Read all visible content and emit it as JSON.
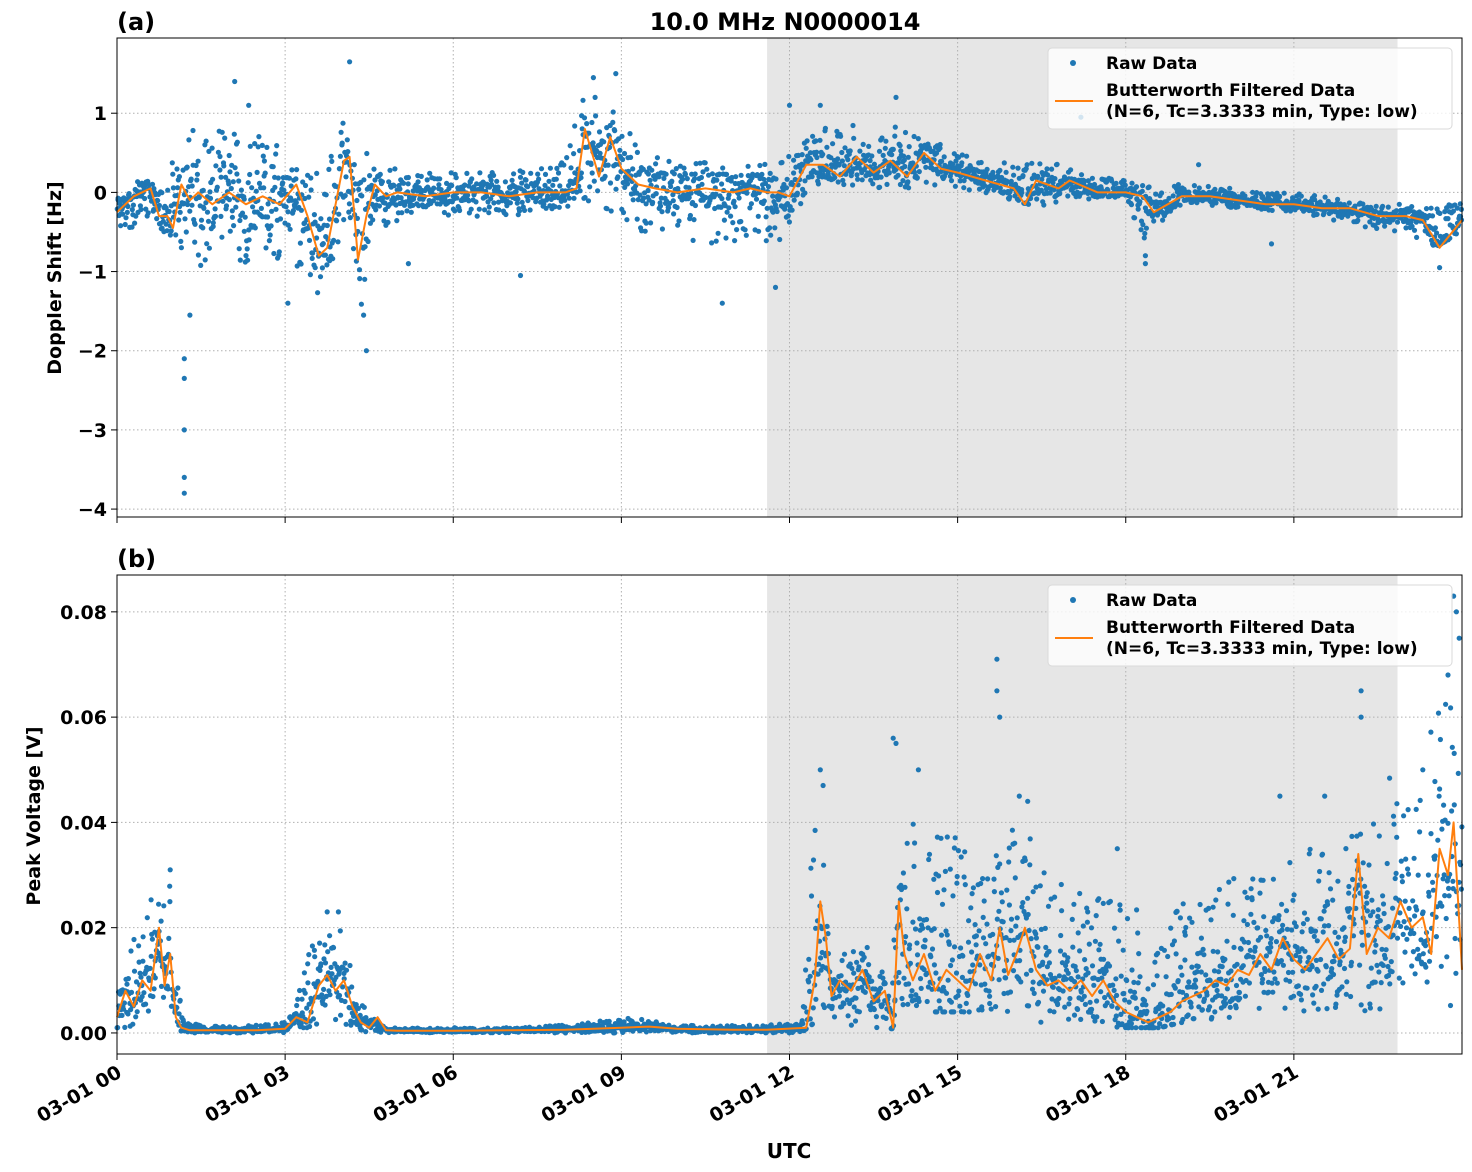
{
  "figure_title": "10.0 MHz N0000014",
  "x_axis_label": "UTC",
  "x_tick_labels": [
    "03-01 00",
    "03-01 03",
    "03-01 06",
    "03-01 09",
    "03-01 12",
    "03-01 15",
    "03-01 18",
    "03-01 21"
  ],
  "legend": {
    "raw_label": "Raw Data",
    "filtered_label_line1": "Butterworth Filtered Data",
    "filtered_label_line2": "(N=6, Tc=3.3333 min, Type: low)",
    "placement": "top-right"
  },
  "colors": {
    "raw": "#1f77b4",
    "filtered": "#ff7f0e",
    "night_shade": "#e6e6e6"
  },
  "chart_data": [
    {
      "type": "scatter",
      "panel_label": "(a)",
      "title": "10.0 MHz N0000014",
      "xlabel": "",
      "ylabel": "Doppler Shift [Hz]",
      "xlim_hours": [
        0,
        24
      ],
      "ylim": [
        -4.1,
        1.95
      ],
      "y_ticks": [
        -4,
        -3,
        -2,
        -1,
        0,
        1
      ],
      "y_tick_labels": [
        "−4",
        "−3",
        "−2",
        "−1",
        "0",
        "1"
      ],
      "grid": true,
      "shaded_region_hours": [
        11.6,
        22.85
      ],
      "series": [
        {
          "name": "Raw Data",
          "style": "points",
          "envelope_hours": [
            0,
            0.5,
            0.9,
            1.2,
            1.5,
            2,
            2.5,
            3,
            3.3,
            3.6,
            4,
            4.15,
            4.35,
            4.6,
            5,
            5.5,
            6,
            7,
            8,
            8.3,
            8.7,
            9,
            9.5,
            10,
            10.5,
            11,
            11.4,
            11.9,
            12.3,
            12.6,
            13,
            13.5,
            14,
            14.5,
            15,
            16,
            16.5,
            17,
            17.5,
            18,
            18.3,
            19,
            20,
            21,
            22,
            22.5,
            23,
            23.5,
            24
          ],
          "envelope_min": [
            -0.5,
            -0.4,
            -0.7,
            -0.8,
            -1.0,
            -0.9,
            -0.9,
            -0.9,
            -1.0,
            -1.3,
            -0.6,
            -0.3,
            -1.6,
            -0.5,
            -0.4,
            -0.3,
            -0.3,
            -0.3,
            -0.2,
            -0.1,
            -0.2,
            -0.3,
            -0.6,
            -0.6,
            -0.7,
            -0.7,
            -0.5,
            -0.8,
            0.0,
            0.05,
            0.1,
            0.05,
            0.0,
            0.1,
            0.05,
            -0.1,
            -0.2,
            -0.05,
            -0.1,
            -0.1,
            -0.6,
            -0.15,
            -0.2,
            -0.25,
            -0.4,
            -0.5,
            -0.5,
            -0.7,
            -0.5
          ],
          "envelope_max": [
            0.1,
            0.15,
            0.2,
            0.9,
            0.8,
            0.85,
            0.75,
            0.6,
            0.2,
            0.4,
            1.0,
            0.6,
            0.5,
            0.5,
            0.3,
            0.3,
            0.25,
            0.25,
            0.4,
            1.2,
            1.2,
            0.9,
            0.5,
            0.4,
            0.4,
            0.3,
            0.4,
            0.5,
            0.7,
            0.8,
            0.9,
            0.7,
            0.9,
            0.7,
            0.5,
            0.35,
            0.45,
            0.3,
            0.2,
            0.15,
            0.1,
            0.1,
            0.05,
            0.0,
            -0.1,
            -0.15,
            -0.15,
            -0.2,
            -0.1
          ],
          "outliers": [
            [
              1.2,
              -3.8
            ],
            [
              1.2,
              -3.6
            ],
            [
              1.2,
              -3.0
            ],
            [
              1.2,
              -2.35
            ],
            [
              1.2,
              -2.1
            ],
            [
              1.3,
              -1.55
            ],
            [
              2.1,
              1.4
            ],
            [
              2.35,
              1.1
            ],
            [
              3.05,
              -1.4
            ],
            [
              4.15,
              1.65
            ],
            [
              4.45,
              -2.0
            ],
            [
              4.4,
              -1.55
            ],
            [
              5.2,
              -0.9
            ],
            [
              7.2,
              -1.05
            ],
            [
              8.5,
              1.45
            ],
            [
              8.9,
              1.5
            ],
            [
              10.8,
              -1.4
            ],
            [
              11.75,
              -1.2
            ],
            [
              12.0,
              1.1
            ],
            [
              12.55,
              1.1
            ],
            [
              13.9,
              1.2
            ],
            [
              17.2,
              0.95
            ],
            [
              18.35,
              -0.9
            ],
            [
              18.35,
              -0.8
            ],
            [
              19.3,
              0.35
            ],
            [
              20.6,
              -0.65
            ],
            [
              23.6,
              -0.95
            ]
          ]
        },
        {
          "name": "Butterworth Filtered Data",
          "style": "line",
          "x_hours": [
            0,
            0.3,
            0.6,
            0.75,
            0.9,
            1.0,
            1.15,
            1.3,
            1.45,
            1.7,
            2.0,
            2.3,
            2.6,
            2.9,
            3.2,
            3.4,
            3.6,
            3.75,
            3.9,
            4.05,
            4.15,
            4.3,
            4.45,
            4.6,
            4.8,
            5.0,
            5.5,
            6,
            6.5,
            7,
            7.5,
            8.0,
            8.2,
            8.35,
            8.6,
            8.8,
            9.0,
            9.3,
            9.6,
            10,
            10.5,
            11,
            11.3,
            11.6,
            11.8,
            12.0,
            12.3,
            12.6,
            12.9,
            13.2,
            13.5,
            13.8,
            14.1,
            14.4,
            14.7,
            15,
            15.5,
            16,
            16.2,
            16.4,
            16.8,
            17,
            17.5,
            18,
            18.3,
            18.5,
            19,
            19.5,
            20,
            20.5,
            21,
            21.5,
            22,
            22.5,
            23,
            23.3,
            23.6,
            24
          ],
          "y": [
            -0.25,
            -0.05,
            0.05,
            -0.3,
            -0.3,
            -0.45,
            0.1,
            -0.1,
            0.0,
            -0.15,
            0.0,
            -0.15,
            -0.05,
            -0.15,
            0.1,
            -0.3,
            -0.8,
            -0.7,
            -0.15,
            0.4,
            0.45,
            -0.85,
            -0.3,
            0.1,
            -0.05,
            0.0,
            -0.05,
            0.0,
            0.0,
            -0.05,
            0.0,
            0.0,
            0.05,
            0.8,
            0.2,
            0.7,
            0.3,
            0.1,
            0.05,
            0.0,
            0.05,
            0.0,
            0.05,
            0.0,
            0.0,
            -0.05,
            0.35,
            0.35,
            0.2,
            0.45,
            0.25,
            0.4,
            0.2,
            0.5,
            0.3,
            0.25,
            0.15,
            0.05,
            -0.15,
            0.15,
            0.05,
            0.15,
            0.0,
            0.0,
            -0.05,
            -0.25,
            -0.05,
            -0.05,
            -0.1,
            -0.15,
            -0.15,
            -0.2,
            -0.2,
            -0.3,
            -0.3,
            -0.35,
            -0.7,
            -0.35
          ]
        }
      ]
    },
    {
      "type": "scatter",
      "panel_label": "(b)",
      "title": "",
      "xlabel": "UTC",
      "ylabel": "Peak Voltage [V]",
      "xlim_hours": [
        0,
        24
      ],
      "ylim": [
        -0.004,
        0.087
      ],
      "y_ticks": [
        0.0,
        0.02,
        0.04,
        0.06,
        0.08
      ],
      "y_tick_labels": [
        "0.00",
        "0.02",
        "0.04",
        "0.06",
        "0.08"
      ],
      "grid": true,
      "shaded_region_hours": [
        11.6,
        22.85
      ],
      "series": [
        {
          "name": "Raw Data",
          "style": "points",
          "envelope_hours": [
            0,
            0.2,
            0.4,
            0.6,
            0.8,
            0.95,
            1.05,
            1.2,
            1.5,
            2,
            2.5,
            3,
            3.2,
            3.5,
            3.75,
            4.0,
            4.2,
            4.45,
            4.7,
            4.8,
            5,
            6,
            7,
            8,
            9,
            9.5,
            10,
            11,
            11.6,
            12.2,
            12.45,
            12.55,
            12.65,
            12.75,
            13,
            13.5,
            13.8,
            13.95,
            14.2,
            14.5,
            15,
            15.3,
            15.6,
            15.9,
            16.2,
            16.5,
            17,
            17.5,
            17.8,
            18,
            18.3,
            18.6,
            19,
            19.5,
            20,
            20.5,
            21,
            21.5,
            22,
            22.4,
            22.6,
            23,
            23.3,
            23.5,
            23.7,
            24
          ],
          "envelope_min": [
            0.001,
            0.001,
            0.002,
            0.002,
            0.002,
            0.003,
            0.001,
            0.0,
            0.0,
            0.0,
            0.0,
            0.0,
            0.001,
            0.001,
            0.002,
            0.002,
            0.001,
            0.0,
            0.0,
            0.0,
            0.0,
            0.0,
            0.0,
            0.0,
            0.0,
            0.0,
            0.0,
            0.0,
            0.0,
            0.0,
            0.002,
            0.003,
            0.003,
            0.002,
            0.001,
            0.001,
            0.0,
            0.003,
            0.004,
            0.004,
            0.004,
            0.004,
            0.004,
            0.003,
            0.003,
            0.002,
            0.002,
            0.002,
            0.001,
            0.001,
            0.001,
            0.001,
            0.002,
            0.002,
            0.002,
            0.003,
            0.003,
            0.003,
            0.004,
            0.004,
            0.004,
            0.005,
            0.005,
            0.005,
            0.004,
            0.003
          ],
          "envelope_max": [
            0.012,
            0.014,
            0.022,
            0.026,
            0.027,
            0.028,
            0.013,
            0.002,
            0.0015,
            0.0015,
            0.0015,
            0.002,
            0.006,
            0.018,
            0.02,
            0.02,
            0.011,
            0.004,
            0.0015,
            0.001,
            0.001,
            0.001,
            0.001,
            0.0015,
            0.003,
            0.0025,
            0.0015,
            0.0015,
            0.0015,
            0.002,
            0.045,
            0.045,
            0.03,
            0.012,
            0.016,
            0.018,
            0.006,
            0.035,
            0.045,
            0.04,
            0.04,
            0.03,
            0.035,
            0.04,
            0.04,
            0.032,
            0.028,
            0.028,
            0.025,
            0.03,
            0.02,
            0.018,
            0.025,
            0.028,
            0.03,
            0.032,
            0.035,
            0.035,
            0.04,
            0.04,
            0.05,
            0.045,
            0.055,
            0.06,
            0.065,
            0.065
          ],
          "outliers": [
            [
              0.95,
              0.031
            ],
            [
              3.75,
              0.023
            ],
            [
              3.95,
              0.023
            ],
            [
              12.55,
              0.05
            ],
            [
              12.6,
              0.047
            ],
            [
              13.85,
              0.056
            ],
            [
              13.9,
              0.055
            ],
            [
              14.3,
              0.05
            ],
            [
              15.7,
              0.071
            ],
            [
              15.7,
              0.065
            ],
            [
              15.75,
              0.06
            ],
            [
              16.1,
              0.045
            ],
            [
              16.25,
              0.044
            ],
            [
              17.85,
              0.035
            ],
            [
              20.75,
              0.045
            ],
            [
              21.55,
              0.045
            ],
            [
              22.2,
              0.065
            ],
            [
              22.2,
              0.06
            ],
            [
              23.3,
              0.05
            ],
            [
              23.75,
              0.068
            ],
            [
              23.85,
              0.083
            ],
            [
              23.9,
              0.08
            ],
            [
              23.95,
              0.075
            ]
          ]
        },
        {
          "name": "Butterworth Filtered Data",
          "style": "line",
          "x_hours": [
            0,
            0.15,
            0.3,
            0.45,
            0.6,
            0.75,
            0.85,
            0.95,
            1.05,
            1.15,
            1.3,
            1.6,
            2,
            2.5,
            3.0,
            3.2,
            3.4,
            3.6,
            3.75,
            3.9,
            4.05,
            4.2,
            4.35,
            4.5,
            4.65,
            4.8,
            5,
            6,
            7,
            8,
            9,
            9.5,
            10,
            11,
            11.6,
            12.3,
            12.45,
            12.55,
            12.65,
            12.75,
            12.9,
            13.1,
            13.3,
            13.5,
            13.7,
            13.85,
            13.95,
            14.05,
            14.2,
            14.4,
            14.6,
            14.8,
            15.0,
            15.2,
            15.4,
            15.6,
            15.75,
            15.9,
            16.05,
            16.2,
            16.4,
            16.6,
            16.8,
            17.0,
            17.2,
            17.4,
            17.6,
            17.8,
            18.0,
            18.2,
            18.4,
            18.6,
            18.8,
            19.0,
            19.2,
            19.4,
            19.6,
            19.8,
            20.0,
            20.2,
            20.4,
            20.6,
            20.8,
            21.0,
            21.2,
            21.4,
            21.6,
            21.8,
            22.0,
            22.15,
            22.3,
            22.5,
            22.7,
            22.9,
            23.1,
            23.3,
            23.45,
            23.6,
            23.75,
            23.85,
            24
          ],
          "y": [
            0.003,
            0.008,
            0.005,
            0.01,
            0.008,
            0.02,
            0.009,
            0.015,
            0.003,
            0.001,
            0.0005,
            0.0005,
            0.0005,
            0.0005,
            0.0008,
            0.003,
            0.002,
            0.009,
            0.011,
            0.008,
            0.01,
            0.005,
            0.002,
            0.001,
            0.003,
            0.0005,
            0.0004,
            0.0004,
            0.0005,
            0.0006,
            0.001,
            0.0012,
            0.0008,
            0.0006,
            0.0006,
            0.001,
            0.01,
            0.025,
            0.018,
            0.007,
            0.01,
            0.008,
            0.012,
            0.006,
            0.008,
            0.001,
            0.025,
            0.015,
            0.01,
            0.015,
            0.008,
            0.012,
            0.01,
            0.008,
            0.015,
            0.01,
            0.02,
            0.011,
            0.015,
            0.02,
            0.012,
            0.009,
            0.01,
            0.008,
            0.01,
            0.007,
            0.01,
            0.006,
            0.004,
            0.003,
            0.002,
            0.003,
            0.004,
            0.006,
            0.007,
            0.008,
            0.01,
            0.009,
            0.012,
            0.011,
            0.015,
            0.012,
            0.018,
            0.014,
            0.012,
            0.015,
            0.018,
            0.014,
            0.016,
            0.034,
            0.015,
            0.02,
            0.018,
            0.025,
            0.02,
            0.022,
            0.015,
            0.035,
            0.03,
            0.04,
            0.012
          ]
        }
      ]
    }
  ]
}
